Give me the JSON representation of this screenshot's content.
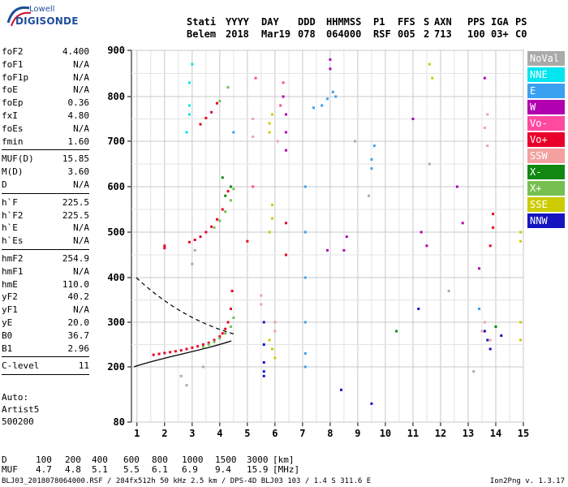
{
  "logo": {
    "brand": "Lowell",
    "product": "DIGISONDE"
  },
  "header": {
    "row1": [
      "Stati",
      "YYYY",
      "DAY",
      "DDD",
      "HHMMSS",
      "P1",
      "FFS",
      "S",
      "AXN",
      "PPS",
      "IGA",
      "PS"
    ],
    "row2": [
      "Belem",
      "2018",
      "Mar19",
      "078",
      "064000",
      "RSF",
      "005",
      "2",
      "713",
      "100",
      "03+",
      "C0"
    ]
  },
  "params_groups": [
    [
      {
        "k": "foF2",
        "v": "4.400"
      },
      {
        "k": "foF1",
        "v": "N/A"
      },
      {
        "k": "foF1p",
        "v": "N/A"
      },
      {
        "k": "foE",
        "v": "N/A"
      },
      {
        "k": "foEp",
        "v": "0.36"
      },
      {
        "k": "fxI",
        "v": "4.80"
      },
      {
        "k": "foEs",
        "v": "N/A"
      },
      {
        "k": "fmin",
        "v": "1.60"
      }
    ],
    [
      {
        "k": "MUF(D)",
        "v": "15.85"
      },
      {
        "k": "M(D)",
        "v": "3.60"
      },
      {
        "k": "D",
        "v": "N/A"
      }
    ],
    [
      {
        "k": "h`F",
        "v": "225.5"
      },
      {
        "k": "h`F2",
        "v": "225.5"
      },
      {
        "k": "h`E",
        "v": "N/A"
      },
      {
        "k": "h`Es",
        "v": "N/A"
      }
    ],
    [
      {
        "k": "hmF2",
        "v": "254.9"
      },
      {
        "k": "hmF1",
        "v": "N/A"
      },
      {
        "k": "hmE",
        "v": "110.0"
      },
      {
        "k": "yF2",
        "v": "40.2"
      },
      {
        "k": "yF1",
        "v": "N/A"
      },
      {
        "k": "yE",
        "v": "20.0"
      },
      {
        "k": "B0",
        "v": "36.7"
      },
      {
        "k": "B1",
        "v": "2.96"
      }
    ],
    [
      {
        "k": "C-level",
        "v": "11"
      }
    ]
  ],
  "auto": {
    "label": "Auto:",
    "artist": "Artist5",
    "version_code": "500200"
  },
  "legend": [
    {
      "label": "NoVal",
      "color": "#aaaaaa"
    },
    {
      "label": "NNE",
      "color": "#00e5ee"
    },
    {
      "label": "E",
      "color": "#3aa0f0"
    },
    {
      "label": "W",
      "color": "#b000b0"
    },
    {
      "label": "Vo-",
      "color": "#ff4aa0"
    },
    {
      "label": "Vo+",
      "color": "#e8002a"
    },
    {
      "label": "SSW",
      "color": "#f4a0a0"
    },
    {
      "label": "X-",
      "color": "#118811"
    },
    {
      "label": "X+",
      "color": "#77c050"
    },
    {
      "label": "SSE",
      "color": "#cccc00"
    },
    {
      "label": "NNW",
      "color": "#1515c0"
    }
  ],
  "dmuf": {
    "d_label": "D",
    "d_values": [
      "100",
      "200",
      "400",
      "600",
      "800",
      "1000",
      "1500",
      "3000"
    ],
    "d_unit": "[km]",
    "muf_label": "MUF",
    "muf_values": [
      "4.7",
      "4.8",
      "5.1",
      "5.5",
      "6.1",
      "6.9",
      "9.4",
      "15.9"
    ],
    "muf_unit": "[MHz]"
  },
  "footer": "BLJ03_2018078064000.RSF / 284fx512h 50 kHz 2.5 km / DPS-4D BLJ03 103 / 1.4 S 311.6 E",
  "version": "Ion2Png v. 1.3.17",
  "chart_data": {
    "type": "scatter",
    "title": "",
    "xlabel": "",
    "ylabel": "",
    "xlim": [
      0.8,
      15
    ],
    "ylim": [
      80,
      900
    ],
    "x_ticks": [
      1,
      2,
      3,
      4,
      5,
      6,
      7,
      8,
      9,
      10,
      11,
      12,
      13,
      14,
      15
    ],
    "y_ticks": [
      80,
      200,
      300,
      400,
      500,
      600,
      700,
      800,
      900
    ],
    "grid": true,
    "series": [
      {
        "name": "Vo+",
        "color": "#e8002a",
        "points": [
          [
            1.6,
            227
          ],
          [
            1.8,
            229
          ],
          [
            2.0,
            231
          ],
          [
            2.2,
            233
          ],
          [
            2.4,
            235
          ],
          [
            2.6,
            237
          ],
          [
            2.8,
            240
          ],
          [
            3.0,
            243
          ],
          [
            3.2,
            246
          ],
          [
            3.4,
            250
          ],
          [
            3.6,
            254
          ],
          [
            3.8,
            260
          ],
          [
            4.0,
            268
          ],
          [
            4.1,
            275
          ],
          [
            4.2,
            285
          ],
          [
            4.3,
            300
          ],
          [
            4.4,
            330
          ],
          [
            4.45,
            370
          ],
          [
            2.9,
            478
          ],
          [
            3.1,
            483
          ],
          [
            3.3,
            490
          ],
          [
            3.5,
            500
          ],
          [
            3.7,
            512
          ],
          [
            3.9,
            528
          ],
          [
            4.1,
            550
          ],
          [
            4.3,
            590
          ],
          [
            2.0,
            465
          ],
          [
            2.0,
            470
          ],
          [
            5.0,
            480
          ],
          [
            6.4,
            450
          ],
          [
            6.4,
            520
          ],
          [
            13.8,
            470
          ],
          [
            13.9,
            510
          ],
          [
            13.9,
            540
          ],
          [
            3.3,
            738
          ],
          [
            3.5,
            752
          ],
          [
            3.7,
            765
          ],
          [
            3.9,
            785
          ]
        ]
      },
      {
        "name": "X+",
        "color": "#77c050",
        "points": [
          [
            3.4,
            245
          ],
          [
            3.6,
            250
          ],
          [
            3.8,
            256
          ],
          [
            4.0,
            264
          ],
          [
            4.2,
            275
          ],
          [
            4.4,
            290
          ],
          [
            4.5,
            310
          ],
          [
            3.8,
            510
          ],
          [
            4.0,
            525
          ],
          [
            4.2,
            545
          ],
          [
            4.4,
            570
          ],
          [
            4.5,
            595
          ],
          [
            4.0,
            790
          ],
          [
            4.3,
            820
          ]
        ]
      },
      {
        "name": "E",
        "color": "#3aa0f0",
        "points": [
          [
            7.1,
            200
          ],
          [
            7.1,
            300
          ],
          [
            7.1,
            400
          ],
          [
            7.1,
            500
          ],
          [
            7.1,
            600
          ],
          [
            7.1,
            230
          ],
          [
            7.4,
            775
          ],
          [
            7.7,
            780
          ],
          [
            7.9,
            795
          ],
          [
            8.1,
            810
          ],
          [
            8.2,
            800
          ],
          [
            9.5,
            640
          ],
          [
            9.5,
            660
          ],
          [
            9.6,
            690
          ],
          [
            4.5,
            720
          ],
          [
            13.4,
            330
          ]
        ]
      },
      {
        "name": "NNE",
        "color": "#00e5ee",
        "points": [
          [
            2.8,
            720
          ],
          [
            2.9,
            780
          ],
          [
            2.9,
            830
          ],
          [
            3.0,
            870
          ],
          [
            2.9,
            760
          ]
        ]
      },
      {
        "name": "NNW",
        "color": "#1515c0",
        "points": [
          [
            5.6,
            190
          ],
          [
            5.6,
            210
          ],
          [
            5.6,
            250
          ],
          [
            5.6,
            300
          ],
          [
            5.6,
            180
          ],
          [
            13.7,
            260
          ],
          [
            13.8,
            240
          ],
          [
            13.6,
            280
          ],
          [
            9.5,
            120
          ],
          [
            8.4,
            150
          ],
          [
            11.2,
            330
          ],
          [
            14.2,
            270
          ]
        ]
      },
      {
        "name": "SSW",
        "color": "#f4a0a0",
        "points": [
          [
            5.2,
            710
          ],
          [
            5.2,
            750
          ],
          [
            6.1,
            700
          ],
          [
            13.6,
            730
          ],
          [
            13.7,
            760
          ],
          [
            13.7,
            690
          ],
          [
            13.5,
            280
          ],
          [
            13.6,
            300
          ],
          [
            13.8,
            260
          ],
          [
            5.5,
            360
          ],
          [
            5.5,
            340
          ],
          [
            6.0,
            280
          ],
          [
            6.0,
            300
          ]
        ]
      },
      {
        "name": "SSE",
        "color": "#cccc00",
        "points": [
          [
            5.8,
            740
          ],
          [
            5.8,
            720
          ],
          [
            5.9,
            760
          ],
          [
            5.8,
            500
          ],
          [
            5.9,
            530
          ],
          [
            5.9,
            560
          ],
          [
            14.9,
            480
          ],
          [
            14.9,
            500
          ],
          [
            14.9,
            260
          ],
          [
            14.9,
            300
          ],
          [
            11.6,
            870
          ],
          [
            11.7,
            840
          ],
          [
            5.8,
            260
          ],
          [
            5.9,
            240
          ],
          [
            6.0,
            220
          ]
        ]
      },
      {
        "name": "W",
        "color": "#b000b0",
        "points": [
          [
            6.4,
            680
          ],
          [
            6.4,
            720
          ],
          [
            6.4,
            760
          ],
          [
            6.3,
            800
          ],
          [
            8.0,
            860
          ],
          [
            8.0,
            880
          ],
          [
            8.5,
            460
          ],
          [
            8.6,
            490
          ],
          [
            12.6,
            600
          ],
          [
            12.8,
            520
          ],
          [
            13.4,
            420
          ],
          [
            11.3,
            500
          ],
          [
            11.5,
            470
          ],
          [
            13.6,
            840
          ],
          [
            11.0,
            750
          ],
          [
            7.9,
            460
          ]
        ]
      },
      {
        "name": "Vo-",
        "color": "#ff4aa0",
        "points": [
          [
            6.2,
            780
          ],
          [
            6.3,
            830
          ],
          [
            5.3,
            840
          ],
          [
            5.2,
            600
          ]
        ]
      },
      {
        "name": "X-",
        "color": "#118811",
        "points": [
          [
            4.2,
            580
          ],
          [
            4.4,
            600
          ],
          [
            10.4,
            280
          ],
          [
            14.0,
            290
          ],
          [
            4.1,
            620
          ]
        ]
      },
      {
        "name": "NoVal",
        "color": "#aaaaaa",
        "points": [
          [
            2.6,
            180
          ],
          [
            2.8,
            160
          ],
          [
            3.4,
            200
          ],
          [
            3.0,
            430
          ],
          [
            3.1,
            460
          ],
          [
            8.9,
            700
          ],
          [
            9.4,
            580
          ],
          [
            11.6,
            650
          ],
          [
            12.3,
            370
          ],
          [
            13.2,
            190
          ]
        ]
      }
    ]
  }
}
